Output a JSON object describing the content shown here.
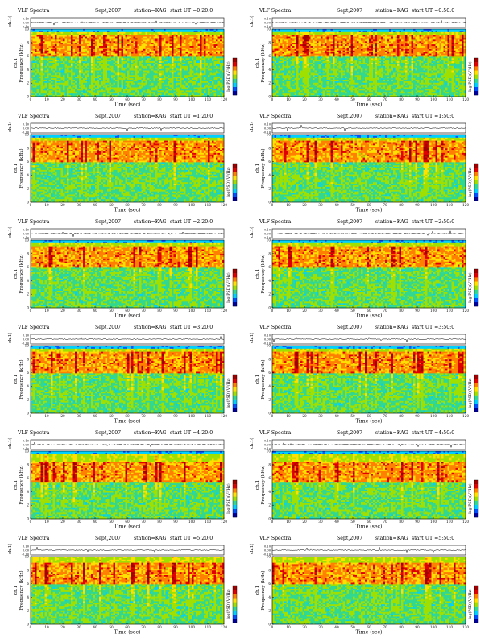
{
  "header_template": {
    "title": "VLF Spectra",
    "date": "Sept,2007",
    "station": "station=KAG",
    "start_prefix": "start  UT  ="
  },
  "axis_text": {
    "ch_label": "ch.1(V)",
    "freq_label": "Frequency (kHz)",
    "ch_prefix": "ch.1",
    "time_label": "Time (sec)",
    "cbar_label": "log(PSD)(V²/Hz)"
  },
  "colors": {
    "colormap": [
      "#0000a0",
      "#0050ff",
      "#00d0ff",
      "#30d890",
      "#a0e000",
      "#ffe000",
      "#ff8000",
      "#e00000",
      "#a00000"
    ]
  },
  "chart_data": [
    {
      "type": "heatmap",
      "title": "VLF Spectra",
      "date": "Sept,2007",
      "station": "station=KAG",
      "start_ut": "0:20:0",
      "xlabel": "Time (sec)",
      "ylabel": "Frequency (kHz)",
      "xlim": [
        0,
        120
      ],
      "ylim": [
        0,
        10
      ],
      "xticks": [
        0,
        10,
        20,
        30,
        40,
        50,
        60,
        70,
        80,
        90,
        100,
        110,
        120
      ],
      "yticks": [
        0,
        2,
        4,
        6,
        8,
        10
      ],
      "ch1_ticks": [
        "0.10",
        "0.00",
        "-0.10"
      ],
      "colorbar_label": "log(PSD)(V²/Hz)",
      "bright_band_khz": [
        6,
        9
      ],
      "cutoff_khz": 9.5
    },
    {
      "type": "heatmap",
      "title": "VLF Spectra",
      "date": "Sept,2007",
      "station": "station=KAG",
      "start_ut": "0:50:0",
      "xlabel": "Time (sec)",
      "ylabel": "Frequency (kHz)",
      "xlim": [
        0,
        120
      ],
      "ylim": [
        0,
        10
      ],
      "xticks": [
        0,
        10,
        20,
        30,
        40,
        50,
        60,
        70,
        80,
        90,
        100,
        110,
        120
      ],
      "yticks": [
        0,
        2,
        4,
        6,
        8,
        10
      ],
      "ch1_ticks": [
        "0.10",
        "0.00",
        "-0.10"
      ],
      "colorbar_label": "log(PSD)(V²/Hz)",
      "bright_band_khz": [
        6,
        9
      ],
      "cutoff_khz": 9.5
    },
    {
      "type": "heatmap",
      "title": "VLF Spectra",
      "date": "Sept,2007",
      "station": "station=KAG",
      "start_ut": "1:20:0",
      "xlabel": "Time (sec)",
      "ylabel": "Frequency (kHz)",
      "xlim": [
        0,
        120
      ],
      "ylim": [
        0,
        10
      ],
      "xticks": [
        0,
        10,
        20,
        30,
        40,
        50,
        60,
        70,
        80,
        90,
        100,
        110,
        120
      ],
      "yticks": [
        0,
        2,
        4,
        6,
        8,
        10
      ],
      "ch1_ticks": [
        "0.10",
        "0.00",
        "-0.10"
      ],
      "colorbar_label": "log(PSD)(V²/Hz)",
      "bright_band_khz": [
        6,
        9
      ],
      "cutoff_khz": 9.5
    },
    {
      "type": "heatmap",
      "title": "VLF Spectra",
      "date": "Sept,2007",
      "station": "station=KAG",
      "start_ut": "1:50:0",
      "xlabel": "Time (sec)",
      "ylabel": "Frequency (kHz)",
      "xlim": [
        0,
        120
      ],
      "ylim": [
        0,
        10
      ],
      "xticks": [
        0,
        10,
        20,
        30,
        40,
        50,
        60,
        70,
        80,
        90,
        100,
        110,
        120
      ],
      "yticks": [
        0,
        2,
        4,
        6,
        8,
        10
      ],
      "ch1_ticks": [
        "0.10",
        "0.00",
        "-0.10"
      ],
      "colorbar_label": "log(PSD)(V²/Hz)",
      "bright_band_khz": [
        6,
        9
      ],
      "cutoff_khz": 9.5
    },
    {
      "type": "heatmap",
      "title": "VLF Spectra",
      "date": "Sept,2007",
      "station": "station=KAG",
      "start_ut": "2:20:0",
      "xlabel": "Time (sec)",
      "ylabel": "Frequency (kHz)",
      "xlim": [
        0,
        120
      ],
      "ylim": [
        0,
        10
      ],
      "xticks": [
        0,
        10,
        20,
        30,
        40,
        50,
        60,
        70,
        80,
        90,
        100,
        110,
        120
      ],
      "yticks": [
        0,
        2,
        4,
        6,
        8,
        10
      ],
      "ch1_ticks": [
        "0.10",
        "0.00",
        "-0.10"
      ],
      "colorbar_label": "log(PSD)(V²/Hz)",
      "bright_band_khz": [
        6,
        9
      ],
      "cutoff_khz": 9.5
    },
    {
      "type": "heatmap",
      "title": "VLF Spectra",
      "date": "Sept,2007",
      "station": "station=KAG",
      "start_ut": "2:50:0",
      "xlabel": "Time (sec)",
      "ylabel": "Frequency (kHz)",
      "xlim": [
        0,
        120
      ],
      "ylim": [
        0,
        10
      ],
      "xticks": [
        0,
        10,
        20,
        30,
        40,
        50,
        60,
        70,
        80,
        90,
        100,
        110,
        120
      ],
      "yticks": [
        0,
        2,
        4,
        6,
        8,
        10
      ],
      "ch1_ticks": [
        "0.10",
        "0.00",
        "-0.10"
      ],
      "colorbar_label": "log(PSD)(V²/Hz)",
      "bright_band_khz": [
        6,
        9
      ],
      "cutoff_khz": 9.5
    },
    {
      "type": "heatmap",
      "title": "VLF Spectra",
      "date": "Sept,2007",
      "station": "station=KAG",
      "start_ut": "3:20:0",
      "xlabel": "Time (sec)",
      "ylabel": "Frequency (kHz)",
      "xlim": [
        0,
        120
      ],
      "ylim": [
        0,
        10
      ],
      "xticks": [
        0,
        10,
        20,
        30,
        40,
        50,
        60,
        70,
        80,
        90,
        100,
        110,
        120
      ],
      "yticks": [
        0,
        2,
        4,
        6,
        8,
        10
      ],
      "ch1_ticks": [
        "0.10",
        "0.00",
        "-0.10"
      ],
      "colorbar_label": "log(PSD)(V²/Hz)",
      "bright_band_khz": [
        6,
        9
      ],
      "cutoff_khz": 9.5
    },
    {
      "type": "heatmap",
      "title": "VLF Spectra",
      "date": "Sept,2007",
      "station": "station=KAG",
      "start_ut": "3:50:0",
      "xlabel": "Time (sec)",
      "ylabel": "Frequency (kHz)",
      "xlim": [
        0,
        120
      ],
      "ylim": [
        0,
        10
      ],
      "xticks": [
        0,
        10,
        20,
        30,
        40,
        50,
        60,
        70,
        80,
        90,
        100,
        110,
        120
      ],
      "yticks": [
        0,
        2,
        4,
        6,
        8,
        10
      ],
      "ch1_ticks": [
        "0.10",
        "0.00",
        "-0.10"
      ],
      "colorbar_label": "log(PSD)(V²/Hz)",
      "bright_band_khz": [
        6,
        9
      ],
      "cutoff_khz": 9.5
    },
    {
      "type": "heatmap",
      "title": "VLF Spectra",
      "date": "Sept,2007",
      "station": "station=KAG",
      "start_ut": "4:20:0",
      "xlabel": "Time (sec)",
      "ylabel": "Frequency (kHz)",
      "xlim": [
        0,
        120
      ],
      "ylim": [
        0,
        10
      ],
      "xticks": [
        0,
        10,
        20,
        30,
        40,
        50,
        60,
        70,
        80,
        90,
        100,
        110,
        120
      ],
      "yticks": [
        0,
        2,
        4,
        6,
        8,
        10
      ],
      "ch1_ticks": [
        "0.10",
        "0.00",
        "-0.10"
      ],
      "colorbar_label": "log(PSD)(V²/Hz)",
      "bright_band_khz": [
        5.5,
        8.5
      ],
      "cutoff_khz": 9.5
    },
    {
      "type": "heatmap",
      "title": "VLF Spectra",
      "date": "Sept,2007",
      "station": "station=KAG",
      "start_ut": "4:50:0",
      "xlabel": "Time (sec)",
      "ylabel": "Frequency (kHz)",
      "xlim": [
        0,
        120
      ],
      "ylim": [
        0,
        10
      ],
      "xticks": [
        0,
        10,
        20,
        30,
        40,
        50,
        60,
        70,
        80,
        90,
        100,
        110,
        120
      ],
      "yticks": [
        0,
        2,
        4,
        6,
        8,
        10
      ],
      "ch1_ticks": [
        "0.10",
        "0.00",
        "-0.10"
      ],
      "colorbar_label": "log(PSD)(V²/Hz)",
      "bright_band_khz": [
        5.5,
        8.5
      ],
      "cutoff_khz": 9.5
    },
    {
      "type": "heatmap",
      "title": "VLF Spectra",
      "date": "Sept,2007",
      "station": "station=KAG",
      "start_ut": "5:20:0",
      "xlabel": "Time (sec)",
      "ylabel": "Frequency (kHz)",
      "xlim": [
        0,
        120
      ],
      "ylim": [
        0,
        10
      ],
      "xticks": [
        0,
        10,
        20,
        30,
        40,
        50,
        60,
        70,
        80,
        90,
        100,
        110,
        120
      ],
      "yticks": [
        0,
        2,
        4,
        6,
        8,
        10
      ],
      "ch1_ticks": [
        "0.10",
        "0.00",
        "-0.10"
      ],
      "colorbar_label": "log(PSD)(V²/Hz)",
      "bright_band_khz": [
        6,
        9
      ],
      "cutoff_khz": 10
    },
    {
      "type": "heatmap",
      "title": "VLF Spectra",
      "date": "Sept,2007",
      "station": "station=KAG",
      "start_ut": "5:50:0",
      "xlabel": "Time (sec)",
      "ylabel": "Frequency (kHz)",
      "xlim": [
        0,
        120
      ],
      "ylim": [
        0,
        10
      ],
      "xticks": [
        0,
        10,
        20,
        30,
        40,
        50,
        60,
        70,
        80,
        90,
        100,
        110,
        120
      ],
      "yticks": [
        0,
        2,
        4,
        6,
        8,
        10
      ],
      "ch1_ticks": [
        "0.10",
        "0.00",
        "-0.10"
      ],
      "colorbar_label": "log(PSD)(V²/Hz)",
      "bright_band_khz": [
        6,
        9
      ],
      "cutoff_khz": 10
    }
  ]
}
